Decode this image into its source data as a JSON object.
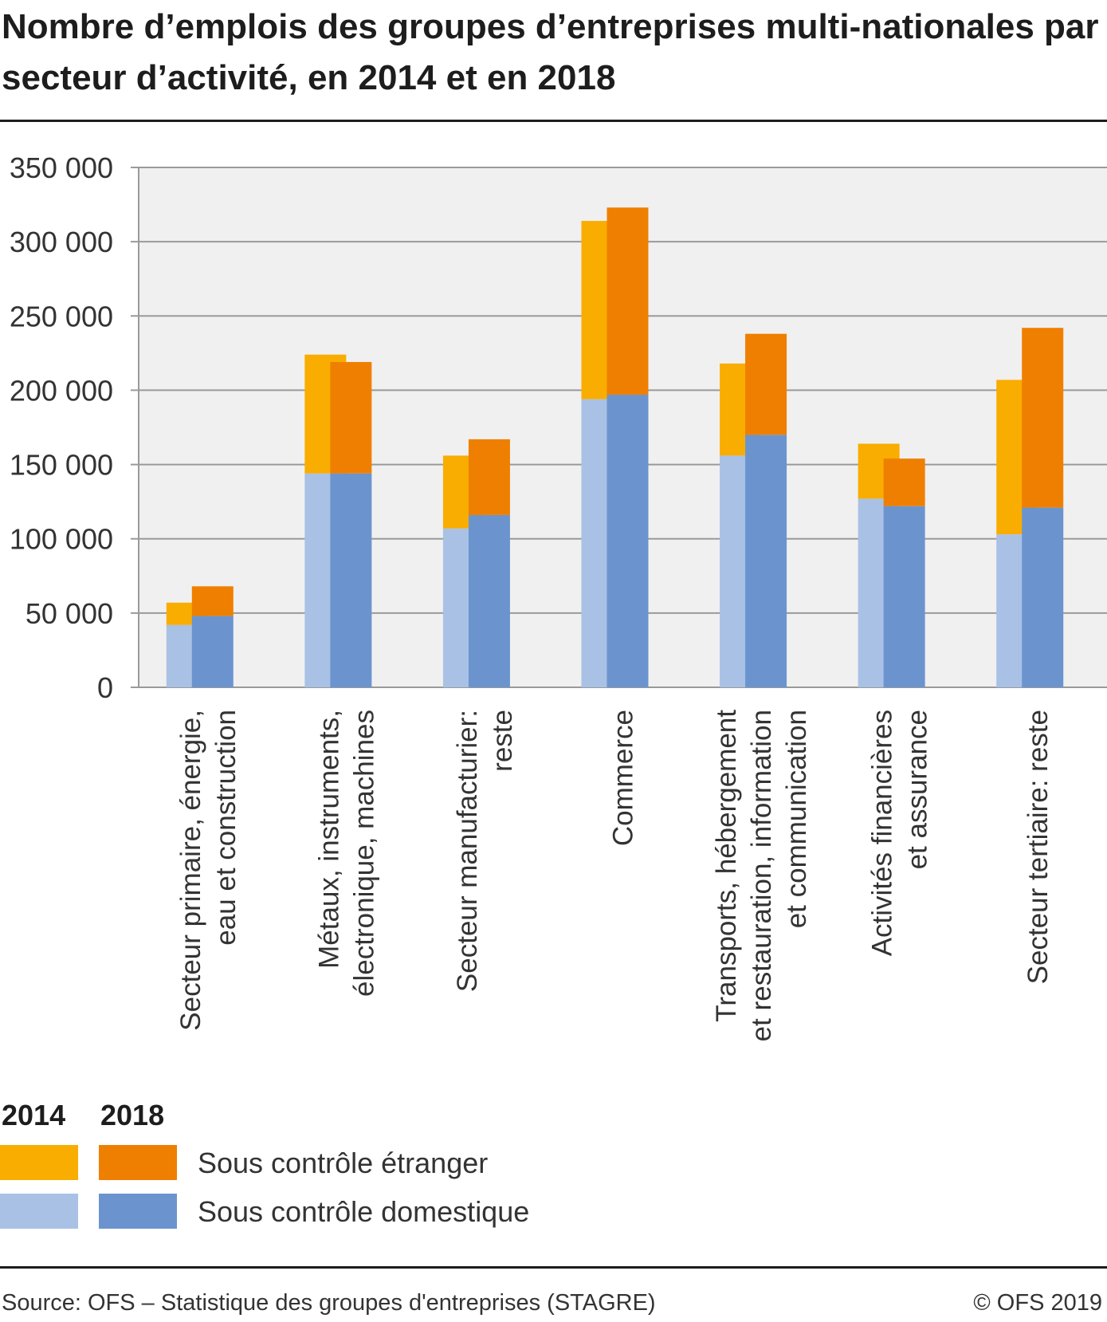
{
  "title": "Nombre d’emplois des groupes d’entreprises multi-nationales par secteur d’activité, en 2014 et en 2018",
  "chart_data": {
    "type": "bar",
    "stacked": true,
    "grouped": true,
    "ylim": [
      0,
      350000
    ],
    "yticks": [
      0,
      50000,
      100000,
      150000,
      200000,
      250000,
      300000,
      350000
    ],
    "ytick_labels": [
      "0",
      "50 000",
      "100 000",
      "150 000",
      "200 000",
      "250 000",
      "300 000",
      "350 000"
    ],
    "grid": true,
    "categories": [
      [
        "Secteur primaire, énergie,",
        "eau et construction"
      ],
      [
        "Métaux, instruments,",
        "électronique, machines"
      ],
      [
        "Secteur manufacturier:",
        "reste"
      ],
      [
        "Commerce"
      ],
      [
        "Transports, hébergement",
        "et restauration, information",
        "et communication"
      ],
      [
        "Activités financières",
        "et assurance"
      ],
      [
        "Secteur tertiaire: reste"
      ]
    ],
    "groups": [
      "2014",
      "2018"
    ],
    "stack_order": [
      "Sous contrôle domestique",
      "Sous contrôle étranger"
    ],
    "series": [
      {
        "name": "Sous contrôle domestique",
        "group": "2014",
        "color": "#a9c1e5",
        "values": [
          42000,
          144000,
          107000,
          194000,
          156000,
          127000,
          103000
        ]
      },
      {
        "name": "Sous contrôle étranger",
        "group": "2014",
        "color": "#f9ad00",
        "values": [
          15000,
          80000,
          49000,
          120000,
          62000,
          37000,
          104000
        ]
      },
      {
        "name": "Sous contrôle domestique",
        "group": "2018",
        "color": "#6b94cf",
        "values": [
          48000,
          144000,
          116000,
          197000,
          170000,
          122000,
          121000
        ]
      },
      {
        "name": "Sous contrôle étranger",
        "group": "2018",
        "color": "#ef7f01",
        "values": [
          20000,
          75000,
          51000,
          126000,
          68000,
          32000,
          121000
        ]
      }
    ]
  },
  "legend": {
    "year_2014": "2014",
    "year_2018": "2018",
    "foreign_label": "Sous contrôle étranger",
    "domestic_label": "Sous contrôle domestique",
    "colors": {
      "foreign_2014": "#f9ad00",
      "foreign_2018": "#ef7f01",
      "domestic_2014": "#a9c1e5",
      "domestic_2018": "#6b94cf"
    }
  },
  "footer": {
    "source": "Source: OFS – Statistique des groupes d'entreprises (STAGRE)",
    "copyright": "© OFS 2019"
  }
}
